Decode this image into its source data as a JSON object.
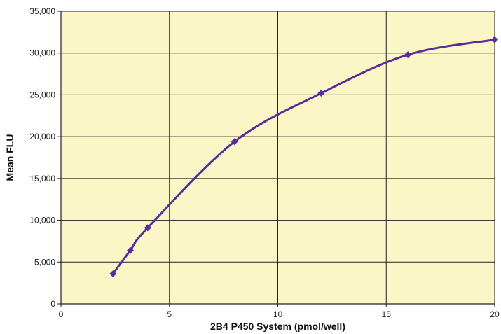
{
  "chart_data": {
    "type": "line",
    "xlabel": "2B4 P450 System (pmol/well)",
    "ylabel": "Mean FLU",
    "xlim": [
      0,
      20
    ],
    "ylim": [
      0,
      35000
    ],
    "xticks": [
      0,
      5,
      10,
      15,
      20
    ],
    "yticks": [
      0,
      5000,
      10000,
      15000,
      20000,
      25000,
      30000,
      35000
    ],
    "xtick_labels": [
      "0",
      "5",
      "10",
      "15",
      "20"
    ],
    "ytick_labels": [
      "0",
      "5,000",
      "10,000",
      "15,000",
      "20,000",
      "25,000",
      "30,000",
      "35,000"
    ],
    "grid": true,
    "smooth": true,
    "marker": "diamond",
    "colors": {
      "plot_background": "#FAF6C6",
      "line": "#5A2D9C",
      "grid": "#222222"
    },
    "series": [
      {
        "x": [
          2.4,
          3.2,
          4,
          8,
          12,
          16,
          20
        ],
        "y": [
          3600,
          6400,
          9100,
          19400,
          25200,
          29800,
          31600
        ]
      }
    ]
  }
}
